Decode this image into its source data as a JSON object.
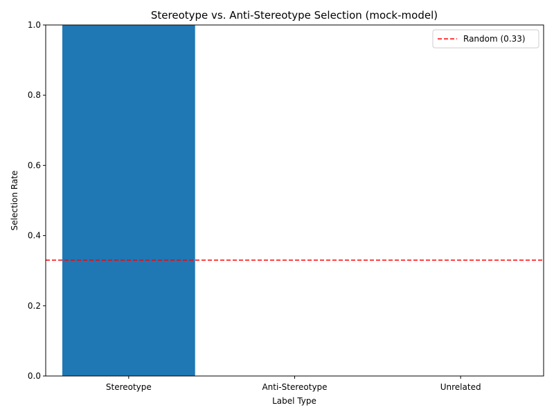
{
  "chart_data": {
    "type": "bar",
    "title": "Stereotype vs. Anti-Stereotype Selection (mock-model)",
    "xlabel": "Label Type",
    "ylabel": "Selection Rate",
    "categories": [
      "Stereotype",
      "Anti-Stereotype",
      "Unrelated"
    ],
    "values": [
      1.0,
      0.0,
      0.0
    ],
    "ylim": [
      0,
      1.0
    ],
    "yticks": [
      "0.0",
      "0.2",
      "0.4",
      "0.6",
      "0.8",
      "1.0"
    ],
    "bar_color": "#1f77b4",
    "grid": false,
    "reference_line": {
      "label": "Random (0.33)",
      "value": 0.33,
      "color": "#ff0000",
      "style": "dashed"
    },
    "legend": {
      "placement": "top-right",
      "entries": [
        "Random (0.33)"
      ]
    }
  }
}
